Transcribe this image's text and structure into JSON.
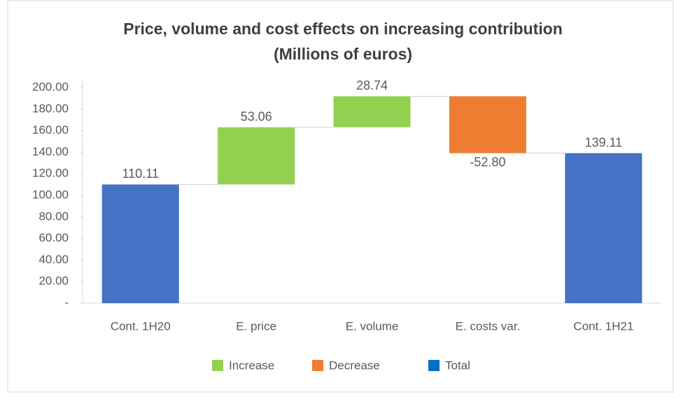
{
  "chart_data": {
    "type": "waterfall",
    "title": "Price, volume and cost effects on increasing contribution",
    "subtitle": "(Millions of euros)",
    "categories": [
      "Cont. 1H20",
      "E. price",
      "E. volume",
      "E. costs var.",
      "Cont. 1H21"
    ],
    "values": [
      110.11,
      53.06,
      28.74,
      -52.8,
      139.11
    ],
    "value_labels": [
      "110.11",
      "53.06",
      "28.74",
      "-52.80",
      "139.11"
    ],
    "colors": [
      "#4472c4",
      "#92d050",
      "#92d050",
      "#ed7d31",
      "#4472c4"
    ],
    "legend": [
      {
        "name": "Increase",
        "color": "#92d050"
      },
      {
        "name": "Decrease",
        "color": "#ed7d31"
      },
      {
        "name": "Total",
        "color": "#0070c0"
      }
    ],
    "ylim": [
      0,
      200
    ],
    "yticks": [
      {
        "value": 0,
        "label": "-"
      },
      {
        "value": 20,
        "label": "20.00"
      },
      {
        "value": 40,
        "label": "40.00"
      },
      {
        "value": 60,
        "label": "60.00"
      },
      {
        "value": 80,
        "label": "80.00"
      },
      {
        "value": 100,
        "label": "100.00"
      },
      {
        "value": 120,
        "label": "120.00"
      },
      {
        "value": 140,
        "label": "140.00"
      },
      {
        "value": 160,
        "label": "160.00"
      },
      {
        "value": 180,
        "label": "180.00"
      },
      {
        "value": 200,
        "label": "200.00"
      }
    ],
    "grid": false
  }
}
